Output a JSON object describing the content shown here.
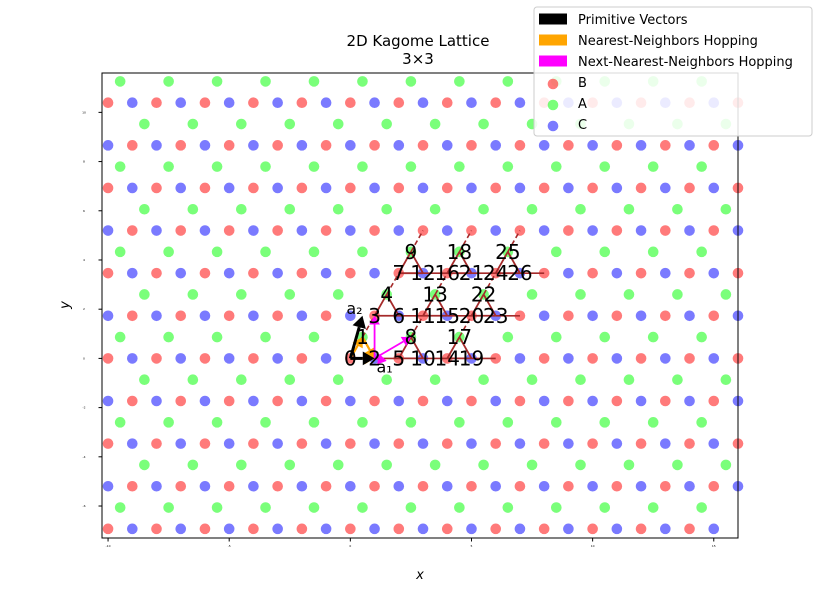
{
  "chart_data": {
    "type": "scatter",
    "title": "2D Kagome Lattice",
    "subtitle": "3×3",
    "xlabel": "x",
    "ylabel": "y",
    "xlim": [
      -10.25,
      16.0
    ],
    "ylim": [
      -7.3,
      11.6
    ],
    "xticks": [
      -10,
      -5,
      0,
      5,
      10,
      15
    ],
    "yticks": [
      -6,
      -4,
      -2,
      0,
      2,
      4,
      6,
      8,
      10
    ],
    "grid": false,
    "legend_position": "top-right",
    "lattice": {
      "i_range": [
        -9,
        9
      ],
      "j_range": [
        -9,
        9
      ],
      "basis": [
        {
          "name": "A",
          "offset": [
            0.5,
            0.8660254
          ],
          "color": "#33ff33"
        },
        {
          "name": "B",
          "offset": [
            0,
            0
          ],
          "color": "#ff3333"
        },
        {
          "name": "C",
          "offset": [
            1,
            0
          ],
          "color": "#3333ff"
        }
      ],
      "a1": [
        2,
        0
      ],
      "a2": [
        1,
        1.7320508
      ]
    },
    "series": [
      {
        "name": "Primitive Vectors",
        "color": "#000000",
        "kind": "arrow"
      },
      {
        "name": "Nearest-Neighbors Hopping",
        "color": "#ffa500",
        "kind": "arrow"
      },
      {
        "name": "Next-Nearest-Neighbors Hopping",
        "color": "#ff00ff",
        "kind": "arrow"
      },
      {
        "name": "B",
        "color": "#ff3333",
        "kind": "marker"
      },
      {
        "name": "A",
        "color": "#33ff33",
        "kind": "marker"
      },
      {
        "name": "C",
        "color": "#3333ff",
        "kind": "marker"
      }
    ],
    "vectors": [
      {
        "label": "a₁",
        "from": [
          0,
          0
        ],
        "to": [
          1,
          0
        ]
      },
      {
        "label": "a₂",
        "from": [
          0,
          0
        ],
        "to": [
          0.5,
          1.732
        ]
      }
    ],
    "nn_hops": [
      [
        0,
        0,
        0.5,
        0.866
      ],
      [
        0,
        0,
        1,
        0
      ],
      [
        0.5,
        0.866,
        1,
        0
      ]
    ],
    "nnn_hops": [
      [
        1,
        0,
        1.0,
        1.732
      ],
      [
        1,
        0,
        2.5,
        0.866
      ],
      [
        1,
        0,
        1.5,
        -0.1
      ]
    ],
    "sites": [
      {
        "label": "0",
        "x": 0,
        "y": 0
      },
      {
        "label": "1",
        "x": 0.5,
        "y": 0.866
      },
      {
        "label": "2",
        "x": 1.0,
        "y": 0
      },
      {
        "label": "3",
        "x": 1.0,
        "y": 1.732
      },
      {
        "label": "4",
        "x": 1.5,
        "y": 2.598
      },
      {
        "label": "5",
        "x": 2.0,
        "y": 0
      },
      {
        "label": "6",
        "x": 2.0,
        "y": 1.732
      },
      {
        "label": "7",
        "x": 2.0,
        "y": 3.464
      },
      {
        "label": "8",
        "x": 2.5,
        "y": 0.866
      },
      {
        "label": "9",
        "x": 2.5,
        "y": 4.33
      },
      {
        "label": "10",
        "x": 3.0,
        "y": 0
      },
      {
        "label": "11",
        "x": 3.0,
        "y": 1.732
      },
      {
        "label": "12",
        "x": 3.0,
        "y": 3.464
      },
      {
        "label": "13",
        "x": 3.5,
        "y": 2.598
      },
      {
        "label": "14",
        "x": 4.0,
        "y": 0
      },
      {
        "label": "15",
        "x": 4.0,
        "y": 1.732
      },
      {
        "label": "16",
        "x": 4.0,
        "y": 3.464
      },
      {
        "label": "17",
        "x": 4.5,
        "y": 0.866
      },
      {
        "label": "18",
        "x": 4.5,
        "y": 4.33
      },
      {
        "label": "19",
        "x": 5.0,
        "y": 0
      },
      {
        "label": "20",
        "x": 5.0,
        "y": 1.732
      },
      {
        "label": "21",
        "x": 5.0,
        "y": 3.464
      },
      {
        "label": "22",
        "x": 5.5,
        "y": 2.598
      },
      {
        "label": "23",
        "x": 6.0,
        "y": 1.732
      },
      {
        "label": "24",
        "x": 6.0,
        "y": 3.464
      },
      {
        "label": "25",
        "x": 6.5,
        "y": 4.33
      },
      {
        "label": "26",
        "x": 7.0,
        "y": 3.464
      }
    ],
    "unit_cell_color": "#a52a2a"
  }
}
